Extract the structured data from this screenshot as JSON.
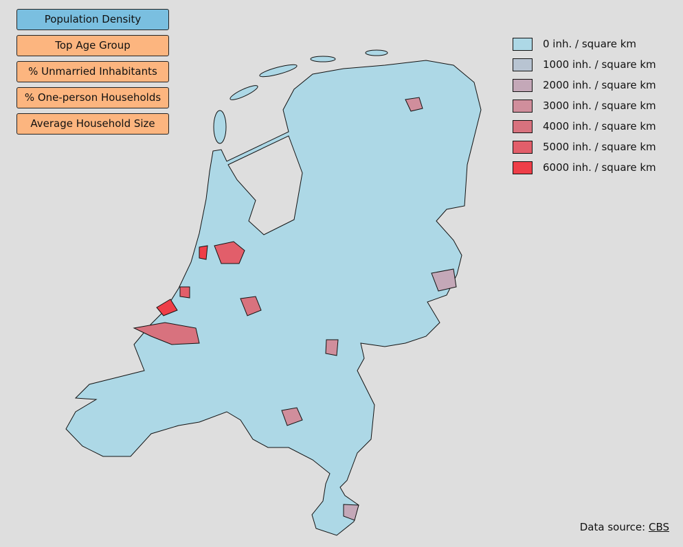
{
  "buttons": [
    {
      "label": "Population Density",
      "active": true
    },
    {
      "label": "Top Age Group",
      "active": false
    },
    {
      "label": "% Unmarried Inhabitants",
      "active": false
    },
    {
      "label": "% One-person Households",
      "active": false
    },
    {
      "label": "Average Household Size",
      "active": false
    }
  ],
  "legend": [
    {
      "label": "0 inh. / square km",
      "color": "#add8e6"
    },
    {
      "label": "1000 inh. / square km",
      "color": "#b8c4d2"
    },
    {
      "label": "2000 inh. / square km",
      "color": "#c4a8b8"
    },
    {
      "label": "3000 inh. / square km",
      "color": "#d08e9c"
    },
    {
      "label": "4000 inh. / square km",
      "color": "#d8727e"
    },
    {
      "label": "5000 inh. / square km",
      "color": "#e25e6a"
    },
    {
      "label": "6000 inh. / square km",
      "color": "#ee3e48"
    }
  ],
  "source": {
    "prefix": "Data source: ",
    "link": "CBS"
  }
}
